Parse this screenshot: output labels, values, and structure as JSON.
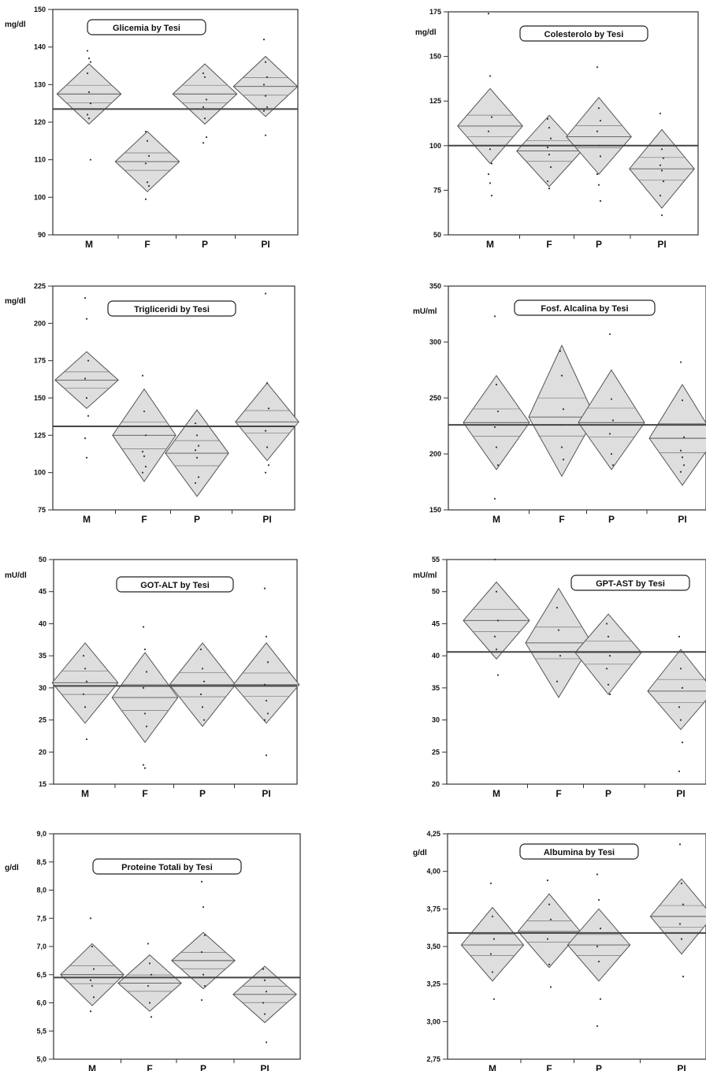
{
  "chart_data": [
    {
      "type": "diamond",
      "title": "Glicemia by Tesi",
      "ylabel": "mg/dl",
      "categories": [
        "M",
        "F",
        "P",
        "PI"
      ],
      "ylim": [
        90,
        150
      ],
      "yticks": [
        "90",
        "100",
        "110",
        "120",
        "130",
        "140",
        "150"
      ],
      "grand_mean": 123.5,
      "groups": [
        {
          "mean": 127.5,
          "lo": 119.5,
          "hi": 135.5,
          "points": [
            139,
            137,
            136,
            133,
            128,
            125,
            122,
            121,
            110
          ]
        },
        {
          "mean": 109.5,
          "lo": 101.5,
          "hi": 117.5,
          "points": [
            117.5,
            115,
            111,
            109,
            104,
            103,
            99.5
          ]
        },
        {
          "mean": 127.5,
          "lo": 119.5,
          "hi": 135.5,
          "points": [
            133,
            132,
            126,
            124,
            121,
            116,
            114.5
          ]
        },
        {
          "mean": 129.5,
          "lo": 121.5,
          "hi": 137.5,
          "points": [
            142,
            136,
            132,
            130,
            127,
            124,
            123,
            116.5
          ]
        }
      ]
    },
    {
      "type": "diamond",
      "title": "Colesterolo by Tesi",
      "ylabel": "mg/dl",
      "categories": [
        "M",
        "F",
        "P",
        "PI"
      ],
      "ylim": [
        50,
        175
      ],
      "yticks": [
        "50",
        "75",
        "100",
        "125",
        "150",
        "175"
      ],
      "grand_mean": 100,
      "groups": [
        {
          "mean": 111,
          "lo": 90,
          "hi": 132,
          "points": [
            174,
            139,
            116,
            108,
            98,
            90,
            84,
            79,
            72
          ]
        },
        {
          "mean": 97,
          "lo": 77,
          "hi": 117,
          "points": [
            115,
            110,
            104,
            99,
            95,
            88,
            80,
            76
          ]
        },
        {
          "mean": 105,
          "lo": 84,
          "hi": 127,
          "points": [
            144,
            121,
            114,
            108,
            100,
            94,
            84,
            78,
            69
          ]
        },
        {
          "mean": 87,
          "lo": 65,
          "hi": 109,
          "points": [
            118,
            98,
            93,
            89,
            86,
            80,
            72,
            61
          ]
        }
      ]
    },
    {
      "type": "diamond",
      "title": "Trigliceridi  by Tesi",
      "ylabel": "mg/dl",
      "categories": [
        "M",
        "F",
        "P",
        "PI"
      ],
      "ylim": [
        75,
        225
      ],
      "yticks": [
        "75",
        "100",
        "125",
        "150",
        "175",
        "200",
        "225"
      ],
      "grand_mean": 131,
      "groups": [
        {
          "mean": 162,
          "lo": 143,
          "hi": 181,
          "points": [
            217,
            203,
            175,
            163,
            150,
            138,
            123,
            110
          ]
        },
        {
          "mean": 125,
          "lo": 94,
          "hi": 156,
          "points": [
            165,
            141,
            125,
            114,
            111,
            104,
            100
          ]
        },
        {
          "mean": 113,
          "lo": 84,
          "hi": 142,
          "points": [
            133,
            125,
            118,
            115,
            110,
            97,
            93
          ]
        },
        {
          "mean": 134,
          "lo": 108,
          "hi": 160,
          "points": [
            220,
            160,
            143,
            128,
            117,
            105,
            100
          ]
        }
      ]
    },
    {
      "type": "diamond",
      "title": "Fosf. Alcalina by Tesi",
      "ylabel": "mU/ml",
      "categories": [
        "M",
        "F",
        "P",
        "PI"
      ],
      "ylim": [
        150,
        350
      ],
      "yticks": [
        "150",
        "200",
        "250",
        "300",
        "350"
      ],
      "grand_mean": 226,
      "groups": [
        {
          "mean": 228,
          "lo": 186,
          "hi": 270,
          "points": [
            323,
            262,
            238,
            224,
            206,
            190,
            160
          ]
        },
        {
          "mean": 233,
          "lo": 180,
          "hi": 297,
          "points": [
            292,
            270,
            240,
            226,
            206,
            195
          ]
        },
        {
          "mean": 228,
          "lo": 186,
          "hi": 275,
          "points": [
            307,
            249,
            230,
            218,
            200,
            190
          ]
        },
        {
          "mean": 214,
          "lo": 172,
          "hi": 262,
          "points": [
            282,
            248,
            215,
            203,
            197,
            190,
            184
          ]
        }
      ]
    },
    {
      "type": "diamond",
      "title": "GOT-ALT by Tesi",
      "ylabel": "mU/dl",
      "categories": [
        "M",
        "F",
        "P",
        "PI"
      ],
      "ylim": [
        15,
        50
      ],
      "yticks": [
        "15",
        "20",
        "25",
        "30",
        "35",
        "40",
        "45",
        "50"
      ],
      "grand_mean": 30.3,
      "groups": [
        {
          "mean": 30.8,
          "lo": 24.5,
          "hi": 37,
          "points": [
            35,
            33,
            31,
            29,
            27,
            22
          ]
        },
        {
          "mean": 28.5,
          "lo": 21.5,
          "hi": 35.5,
          "points": [
            39.5,
            36,
            32.5,
            30,
            26,
            24,
            18,
            17.5
          ]
        },
        {
          "mean": 30.5,
          "lo": 24,
          "hi": 37,
          "points": [
            36,
            33,
            31,
            29,
            27,
            25
          ]
        },
        {
          "mean": 30.5,
          "lo": 24.5,
          "hi": 37,
          "points": [
            45.5,
            38,
            34,
            30.5,
            28,
            26,
            25,
            19.5
          ]
        }
      ]
    },
    {
      "type": "diamond",
      "title": "GPT-AST by Tesi",
      "ylabel": "mU/ml",
      "categories": [
        "M",
        "F",
        "P",
        "PI"
      ],
      "ylim": [
        20,
        55
      ],
      "yticks": [
        "20",
        "25",
        "30",
        "35",
        "40",
        "45",
        "50",
        "55"
      ],
      "grand_mean": 40.6,
      "groups": [
        {
          "mean": 45.5,
          "lo": 39.5,
          "hi": 51.5,
          "points": [
            55,
            50,
            45.5,
            43,
            41,
            37
          ]
        },
        {
          "mean": 42,
          "lo": 33.5,
          "hi": 50.5,
          "points": [
            47.5,
            44,
            40,
            36
          ]
        },
        {
          "mean": 40.5,
          "lo": 34,
          "hi": 46.5,
          "points": [
            45,
            43,
            40,
            38,
            35.5,
            34
          ]
        },
        {
          "mean": 34.5,
          "lo": 28.5,
          "hi": 41,
          "points": [
            43,
            38,
            35,
            32,
            30,
            26.5,
            22
          ]
        }
      ]
    },
    {
      "type": "diamond",
      "title": "Proteine Totali by Tesi",
      "ylabel": "g/dl",
      "categories": [
        "M",
        "F",
        "P",
        "PI"
      ],
      "ylim": [
        5.0,
        9.0
      ],
      "yticks": [
        "5,0",
        "5,5",
        "6,0",
        "6,5",
        "7,0",
        "7,5",
        "8,0",
        "8,5",
        "9,0"
      ],
      "grand_mean": 6.45,
      "groups": [
        {
          "mean": 6.5,
          "lo": 5.95,
          "hi": 7.05,
          "points": [
            7.5,
            7.0,
            6.6,
            6.4,
            6.3,
            6.1,
            5.85
          ]
        },
        {
          "mean": 6.35,
          "lo": 5.85,
          "hi": 6.85,
          "points": [
            7.05,
            6.7,
            6.5,
            6.3,
            6.0,
            5.75
          ]
        },
        {
          "mean": 6.75,
          "lo": 6.25,
          "hi": 7.25,
          "points": [
            8.15,
            7.7,
            7.2,
            6.9,
            6.5,
            6.3,
            6.05
          ]
        },
        {
          "mean": 6.15,
          "lo": 5.65,
          "hi": 6.65,
          "points": [
            6.6,
            6.4,
            6.2,
            6.0,
            5.8,
            5.3
          ]
        }
      ]
    },
    {
      "type": "diamond",
      "title": "Albumina by Tesi",
      "ylabel": "g/dl",
      "categories": [
        "M",
        "F",
        "P",
        "PI"
      ],
      "ylim": [
        2.75,
        4.25
      ],
      "yticks": [
        "2,75",
        "3,00",
        "3,25",
        "3,50",
        "3,75",
        "4,00",
        "4,25"
      ],
      "grand_mean": 3.59,
      "groups": [
        {
          "mean": 3.51,
          "lo": 3.27,
          "hi": 3.76,
          "points": [
            3.92,
            3.7,
            3.55,
            3.45,
            3.33,
            3.15
          ]
        },
        {
          "mean": 3.6,
          "lo": 3.36,
          "hi": 3.85,
          "points": [
            3.94,
            3.78,
            3.68,
            3.55,
            3.38,
            3.23
          ]
        },
        {
          "mean": 3.51,
          "lo": 3.27,
          "hi": 3.75,
          "points": [
            3.98,
            3.81,
            3.62,
            3.5,
            3.4,
            3.15,
            2.97
          ]
        },
        {
          "mean": 3.7,
          "lo": 3.45,
          "hi": 3.95,
          "points": [
            4.18,
            3.92,
            3.78,
            3.65,
            3.55,
            3.3
          ]
        }
      ]
    }
  ]
}
